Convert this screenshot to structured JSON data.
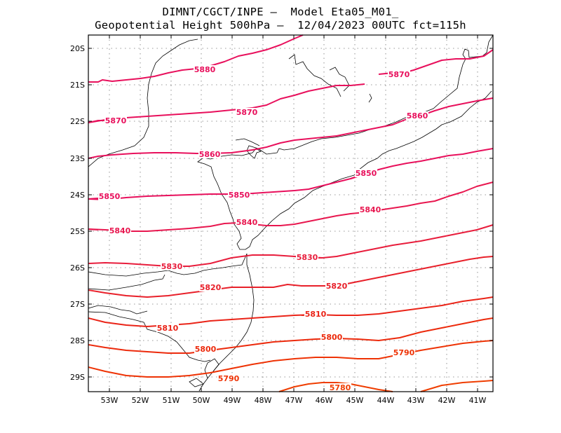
{
  "header": {
    "line1": "DIMNT/CGCT/INPE –  Model Eta05_M01_",
    "line2": "Geopotential Height 500hPa –  12/04/2023 00UTC fct=115h"
  },
  "axes": {
    "lat_labels": [
      "20S",
      "21S",
      "22S",
      "23S",
      "24S",
      "25S",
      "26S",
      "27S",
      "28S",
      "29S"
    ],
    "lon_labels": [
      "53W",
      "52W",
      "51W",
      "50W",
      "49W",
      "48W",
      "47W",
      "46W",
      "45W",
      "44W",
      "43W",
      "42W",
      "41W"
    ]
  },
  "map_data": {
    "lon_range": [
      -53.6,
      -40.5
    ],
    "lat_range": [
      -29.4,
      -19.7
    ],
    "grid": "dotted",
    "contour_field": "Geopotential Height 500hPa",
    "contours": [
      {
        "value": 5880,
        "label": "5880",
        "color": "#e8105c"
      },
      {
        "value": 5870,
        "label": "5870",
        "color": "#e8105c"
      },
      {
        "value": 5870,
        "label": "5870",
        "color": "#e8105c"
      },
      {
        "value": 5870,
        "label": "5870",
        "color": "#e8105c"
      },
      {
        "value": 5860,
        "label": "5860",
        "color": "#e8105c"
      },
      {
        "value": 5860,
        "label": "5860",
        "color": "#e8105c"
      },
      {
        "value": 5850,
        "label": "5850",
        "color": "#e8105c"
      },
      {
        "value": 5850,
        "label": "5850",
        "color": "#e8105c"
      },
      {
        "value": 5850,
        "label": "5850",
        "color": "#e8105c"
      },
      {
        "value": 5840,
        "label": "5840",
        "color": "#e8174f"
      },
      {
        "value": 5840,
        "label": "5840",
        "color": "#e8174f"
      },
      {
        "value": 5840,
        "label": "5840",
        "color": "#e8174f"
      },
      {
        "value": 5830,
        "label": "5830",
        "color": "#e81d3c"
      },
      {
        "value": 5830,
        "label": "5830",
        "color": "#e81d3c"
      },
      {
        "value": 5820,
        "label": "5820",
        "color": "#e8202a"
      },
      {
        "value": 5820,
        "label": "5820",
        "color": "#e8202a"
      },
      {
        "value": 5810,
        "label": "5810",
        "color": "#ea2418"
      },
      {
        "value": 5810,
        "label": "5810",
        "color": "#ea2418"
      },
      {
        "value": 5800,
        "label": "5800",
        "color": "#ec2a0c"
      },
      {
        "value": 5800,
        "label": "5800",
        "color": "#ec2a0c"
      },
      {
        "value": 5790,
        "label": "5790",
        "color": "#ee3204"
      },
      {
        "value": 5790,
        "label": "5790",
        "color": "#ee3204"
      },
      {
        "value": 5780,
        "label": "5780",
        "color": "#ef3d00"
      }
    ]
  }
}
